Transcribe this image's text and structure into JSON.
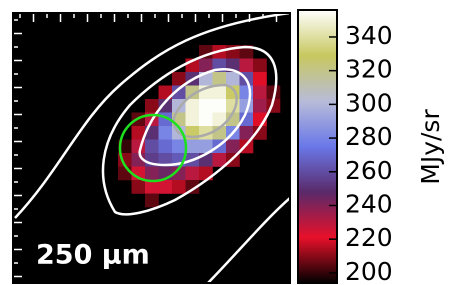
{
  "chart_data": {
    "type": "heatmap",
    "annotation": "250 μm",
    "colorbar_label": "MJy/sr",
    "clim": [
      194,
      356
    ],
    "cticks": [
      200,
      220,
      240,
      260,
      280,
      300,
      320,
      340
    ],
    "colormap": [
      "#000000",
      "#e8102a",
      "#5a2a6a",
      "#6a78e8",
      "#b8bcd8",
      "#c8c860",
      "#ffffff"
    ],
    "background": "#000000",
    "values": [
      [
        null,
        null,
        null,
        null,
        null,
        null,
        205,
        215,
        210,
        205,
        null,
        null
      ],
      [
        null,
        null,
        null,
        null,
        null,
        215,
        240,
        260,
        250,
        230,
        210,
        null
      ],
      [
        null,
        null,
        null,
        null,
        210,
        250,
        300,
        320,
        300,
        260,
        220,
        null
      ],
      [
        null,
        null,
        null,
        215,
        260,
        320,
        350,
        350,
        330,
        280,
        230,
        205
      ],
      [
        null,
        null,
        210,
        250,
        300,
        350,
        355,
        355,
        340,
        290,
        235,
        210
      ],
      [
        null,
        205,
        230,
        270,
        320,
        350,
        355,
        350,
        320,
        270,
        220,
        null
      ],
      [
        null,
        215,
        250,
        280,
        300,
        330,
        340,
        320,
        280,
        240,
        210,
        null
      ],
      [
        200,
        230,
        260,
        270,
        280,
        290,
        290,
        270,
        240,
        215,
        null,
        null
      ],
      [
        210,
        240,
        255,
        260,
        265,
        260,
        250,
        230,
        210,
        null,
        null,
        null
      ],
      [
        205,
        225,
        240,
        245,
        240,
        230,
        215,
        null,
        null,
        null,
        null,
        null
      ],
      [
        null,
        210,
        225,
        225,
        215,
        205,
        null,
        null,
        null,
        null,
        null,
        null
      ],
      [
        null,
        null,
        205,
        null,
        null,
        null,
        null,
        null,
        null,
        null,
        null,
        null
      ]
    ]
  }
}
